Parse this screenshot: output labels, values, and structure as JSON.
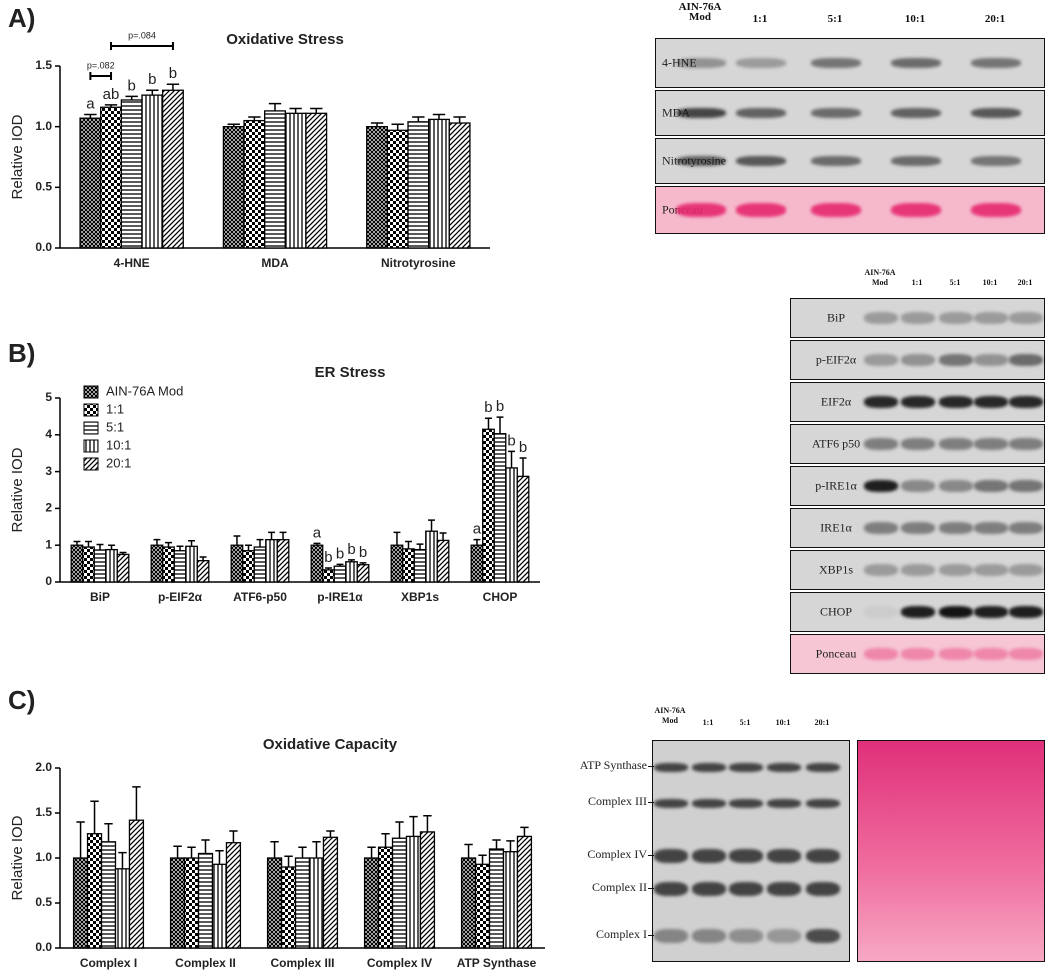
{
  "chart_data": [
    {
      "type": "bar",
      "panel": "A)",
      "title": "Oxidative Stress",
      "y_label": "Relative IOD",
      "categories": [
        "4-HNE",
        "MDA",
        "Nitrotyrosine"
      ],
      "ylim": [
        0,
        1.5
      ],
      "yticks": [
        {
          "value": 0,
          "label": "0.0"
        },
        {
          "value": 0.5,
          "label": "0.5"
        },
        {
          "value": 1,
          "label": "1.0"
        },
        {
          "value": 1.5,
          "label": "1.5"
        }
      ],
      "annotations": [
        "p=.082",
        "p=.084"
      ],
      "series": [
        {
          "pattern": "crosshatch",
          "color": "#000000",
          "values": [
            1.07,
            1.0,
            1.0
          ],
          "errors": [
            0.03,
            0.02,
            0.03
          ],
          "labels": [
            "a",
            null,
            null
          ]
        },
        {
          "pattern": "checker",
          "color": "#000000",
          "values": [
            1.16,
            1.05,
            0.97
          ],
          "errors": [
            0.02,
            0.03,
            0.05
          ],
          "labels": [
            "ab",
            null,
            null
          ]
        },
        {
          "pattern": "hlines",
          "color": "#000000",
          "values": [
            1.22,
            1.13,
            1.04
          ],
          "errors": [
            0.03,
            0.06,
            0.04
          ],
          "labels": [
            "b",
            null,
            null
          ]
        },
        {
          "pattern": "vlines",
          "color": "#000000",
          "values": [
            1.26,
            1.11,
            1.06
          ],
          "errors": [
            0.04,
            0.04,
            0.04
          ],
          "labels": [
            "b",
            null,
            null
          ]
        },
        {
          "pattern": "diag",
          "color": "#000000",
          "values": [
            1.3,
            1.11,
            1.03
          ],
          "errors": [
            0.05,
            0.04,
            0.05
          ],
          "labels": [
            "b",
            null,
            null
          ]
        }
      ]
    },
    {
      "type": "bar",
      "panel": "B)",
      "title": "ER Stress",
      "y_label": "Relative IOD",
      "legend": "upper left",
      "categories": [
        "BiP",
        "p-EIF2α",
        "ATF6-p50",
        "p-IRE1α",
        "XBP1s",
        "CHOP"
      ],
      "ylim": [
        0,
        5
      ],
      "yticks": [
        0,
        1,
        2,
        3,
        4,
        5
      ],
      "series": [
        {
          "name": "AIN-76A Mod",
          "pattern": "crosshatch",
          "color": "#000000",
          "values": [
            1.0,
            1.0,
            1.0,
            1.0,
            1.0,
            1.0
          ],
          "errors": [
            0.1,
            0.15,
            0.25,
            0.05,
            0.35,
            0.15
          ],
          "labels": [
            null,
            null,
            null,
            "a",
            null,
            "a"
          ]
        },
        {
          "name": "1:1",
          "pattern": "checker",
          "color": "#000000",
          "values": [
            0.95,
            0.95,
            0.85,
            0.33,
            0.9,
            4.15
          ],
          "errors": [
            0.15,
            0.12,
            0.15,
            0.05,
            0.2,
            0.3
          ],
          "labels": [
            null,
            null,
            null,
            "b",
            null,
            "b"
          ]
        },
        {
          "name": "5:1",
          "pattern": "hlines",
          "color": "#000000",
          "values": [
            0.87,
            0.85,
            0.95,
            0.43,
            0.88,
            4.03
          ],
          "errors": [
            0.15,
            0.12,
            0.2,
            0.05,
            0.15,
            0.45
          ],
          "labels": [
            null,
            null,
            null,
            "b",
            null,
            "b"
          ]
        },
        {
          "name": "10:1",
          "pattern": "vlines",
          "color": "#000000",
          "values": [
            0.88,
            0.97,
            1.15,
            0.55,
            1.38,
            3.1
          ],
          "errors": [
            0.12,
            0.15,
            0.2,
            0.05,
            0.3,
            0.45
          ],
          "labels": [
            null,
            null,
            null,
            "b",
            null,
            "b"
          ]
        },
        {
          "name": "20:1",
          "pattern": "diag",
          "color": "#000000",
          "values": [
            0.75,
            0.58,
            1.15,
            0.47,
            1.13,
            2.87
          ],
          "errors": [
            0.05,
            0.1,
            0.2,
            0.05,
            0.2,
            0.5
          ],
          "labels": [
            null,
            null,
            null,
            "b",
            null,
            "b"
          ]
        }
      ]
    },
    {
      "type": "bar",
      "panel": "C)",
      "title": "Oxidative Capacity",
      "y_label": "Relative IOD",
      "categories": [
        "Complex I",
        "Complex II",
        "Complex III",
        "Complex IV",
        "ATP Synthase"
      ],
      "ylim": [
        0,
        2
      ],
      "yticks": [
        {
          "value": 0,
          "label": "0.0"
        },
        {
          "value": 0.5,
          "label": "0.5"
        },
        {
          "value": 1,
          "label": "1.0"
        },
        {
          "value": 1.5,
          "label": "1.5"
        },
        {
          "value": 2,
          "label": "2.0"
        }
      ],
      "series": [
        {
          "pattern": "crosshatch",
          "color": "#000000",
          "values": [
            1.0,
            1.0,
            1.0,
            1.0,
            1.0
          ],
          "errors": [
            0.4,
            0.13,
            0.18,
            0.12,
            0.15
          ]
        },
        {
          "pattern": "checker",
          "color": "#000000",
          "values": [
            1.27,
            1.0,
            0.9,
            1.12,
            0.93
          ],
          "errors": [
            0.36,
            0.12,
            0.12,
            0.15,
            0.1
          ]
        },
        {
          "pattern": "hlines",
          "color": "#000000",
          "values": [
            1.18,
            1.05,
            1.0,
            1.22,
            1.1
          ],
          "errors": [
            0.2,
            0.15,
            0.12,
            0.18,
            0.1
          ]
        },
        {
          "pattern": "vlines",
          "color": "#000000",
          "values": [
            0.88,
            0.93,
            1.0,
            1.24,
            1.07
          ],
          "errors": [
            0.18,
            0.15,
            0.18,
            0.22,
            0.12
          ]
        },
        {
          "pattern": "diag",
          "color": "#000000",
          "values": [
            1.42,
            1.17,
            1.23,
            1.29,
            1.24
          ],
          "errors": [
            0.37,
            0.13,
            0.07,
            0.18,
            0.1
          ]
        }
      ]
    }
  ],
  "blots": [
    {
      "lanes": [
        "AIN-76A Mod",
        "1:1",
        "5:1",
        "10:1",
        "20:1"
      ],
      "rows": [
        "4-HNE",
        "MDA",
        "Nitrotyrosine",
        "Ponceau"
      ]
    },
    {
      "lanes": [
        "AIN-76A Mod",
        "1:1",
        "5:1",
        "10:1",
        "20:1"
      ],
      "rows": [
        "BiP",
        "p-EIF2α",
        "EIF2α",
        "ATF6 p50",
        "p-IRE1α",
        "IRE1α",
        "XBP1s",
        "CHOP",
        "Ponceau"
      ]
    }
  ],
  "complex_blot": {
    "lanes": [
      "AIN-76A Mod",
      "1:1",
      "5:1",
      "10:1",
      "20:1"
    ],
    "bands": [
      "ATP Synthase",
      "Complex III",
      "Complex IV",
      "Complex II",
      "Complex I"
    ]
  }
}
